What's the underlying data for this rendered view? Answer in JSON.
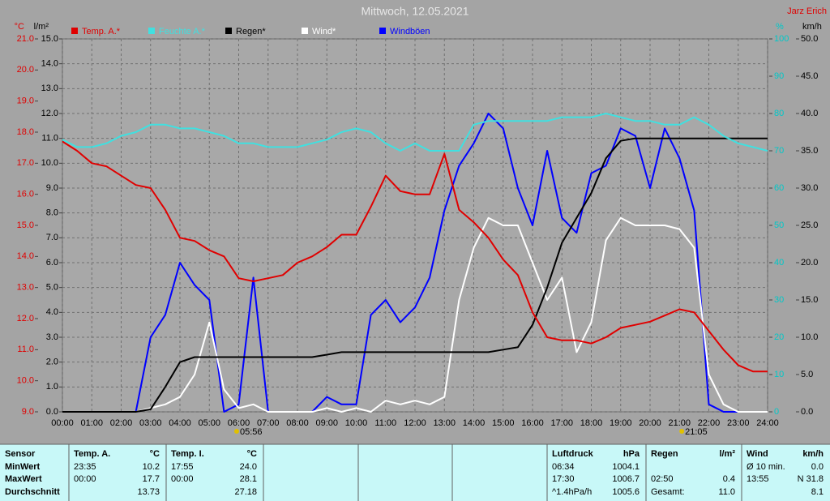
{
  "chart_data": {
    "type": "line",
    "title": "Mittwoch, 12.05.2021",
    "author": "Jarz Erich",
    "x": [
      0,
      0.5,
      1,
      1.5,
      2,
      2.5,
      3,
      3.5,
      4,
      4.5,
      5,
      5.5,
      6,
      6.5,
      7,
      7.5,
      8,
      8.5,
      9,
      9.5,
      10,
      10.5,
      11,
      11.5,
      12,
      12.5,
      13,
      13.5,
      14,
      14.5,
      15,
      15.5,
      16,
      16.5,
      17,
      17.5,
      18,
      18.5,
      19,
      19.5,
      20,
      20.5,
      21,
      21.5,
      22,
      22.5,
      23,
      23.5,
      24
    ],
    "xlim": [
      0,
      24
    ],
    "xticks": [
      {
        "value": 0,
        "label": "00:00"
      },
      {
        "value": 1,
        "label": "01:00"
      },
      {
        "value": 2,
        "label": "02:00"
      },
      {
        "value": 3,
        "label": "03:00"
      },
      {
        "value": 4,
        "label": "04:00"
      },
      {
        "value": 5,
        "label": "05:00"
      },
      {
        "value": 6,
        "label": "06:00"
      },
      {
        "value": 7,
        "label": "07:00"
      },
      {
        "value": 8,
        "label": "08:00"
      },
      {
        "value": 9,
        "label": "09:00"
      },
      {
        "value": 10,
        "label": "10:00"
      },
      {
        "value": 11,
        "label": "11:00"
      },
      {
        "value": 12,
        "label": "12:00"
      },
      {
        "value": 13,
        "label": "13:00"
      },
      {
        "value": 14,
        "label": "14:00"
      },
      {
        "value": 15,
        "label": "15:00"
      },
      {
        "value": 16,
        "label": "16:00"
      },
      {
        "value": 17,
        "label": "17:00"
      },
      {
        "value": 18,
        "label": "18:00"
      },
      {
        "value": 19,
        "label": "19:00"
      },
      {
        "value": 20,
        "label": "20:00"
      },
      {
        "value": 21,
        "label": "21:00"
      },
      {
        "value": 22,
        "label": "22:00"
      },
      {
        "value": 23,
        "label": "23:00"
      },
      {
        "value": 24,
        "label": "24:00"
      }
    ],
    "grid": true,
    "axes": [
      {
        "unit": "°C",
        "color": "#e00000",
        "lim": [
          9,
          21
        ],
        "ticks": [
          {
            "value": 9,
            "label": "9.0"
          },
          {
            "value": 10,
            "label": "10.0"
          },
          {
            "value": 11,
            "label": "11.0"
          },
          {
            "value": 12,
            "label": "12.0"
          },
          {
            "value": 13,
            "label": "13.0"
          },
          {
            "value": 14,
            "label": "14.0"
          },
          {
            "value": 15,
            "label": "15.0"
          },
          {
            "value": 16,
            "label": "16.0"
          },
          {
            "value": 17,
            "label": "17.0"
          },
          {
            "value": 18,
            "label": "18.0"
          },
          {
            "value": 19,
            "label": "19.0"
          },
          {
            "value": 20,
            "label": "20.0"
          },
          {
            "value": 21,
            "label": "21.0"
          }
        ]
      },
      {
        "unit": "l/m²",
        "color": "#000000",
        "lim": [
          0,
          15
        ],
        "ticks": [
          {
            "value": 0,
            "label": "0.0"
          },
          {
            "value": 1,
            "label": "1.0"
          },
          {
            "value": 2,
            "label": "2.0"
          },
          {
            "value": 3,
            "label": "3.0"
          },
          {
            "value": 4,
            "label": "4.0"
          },
          {
            "value": 5,
            "label": "5.0"
          },
          {
            "value": 6,
            "label": "6.0"
          },
          {
            "value": 7,
            "label": "7.0"
          },
          {
            "value": 8,
            "label": "8.0"
          },
          {
            "value": 9,
            "label": "9.0"
          },
          {
            "value": 10,
            "label": "10.0"
          },
          {
            "value": 11,
            "label": "11.0"
          },
          {
            "value": 12,
            "label": "12.0"
          },
          {
            "value": 13,
            "label": "13.0"
          },
          {
            "value": 14,
            "label": "14.0"
          },
          {
            "value": 15,
            "label": "15.0"
          }
        ]
      },
      {
        "unit": "%",
        "color": "#00c8c8",
        "lim": [
          0,
          100
        ],
        "ticks": [
          0,
          10,
          20,
          30,
          40,
          50,
          60,
          70,
          80,
          90,
          100
        ]
      },
      {
        "unit": "km/h",
        "color": "#000000",
        "lim": [
          0,
          50
        ],
        "ticks": [
          {
            "value": 0,
            "label": "0.0"
          },
          {
            "value": 5,
            "label": "5.0"
          },
          {
            "value": 10,
            "label": "10.0"
          },
          {
            "value": 15,
            "label": "15.0"
          },
          {
            "value": 20,
            "label": "20.0"
          },
          {
            "value": 25,
            "label": "25.0"
          },
          {
            "value": 30,
            "label": "30.0"
          },
          {
            "value": 35,
            "label": "35.0"
          },
          {
            "value": 40,
            "label": "40.0"
          },
          {
            "value": 45,
            "label": "45.0"
          },
          {
            "value": 50,
            "label": "50.0"
          }
        ]
      }
    ],
    "series": [
      {
        "name": "Temp. A.*",
        "color": "#e00000",
        "axis": 0,
        "values": [
          17.7,
          17.4,
          17.0,
          16.9,
          16.6,
          16.3,
          16.2,
          15.5,
          14.6,
          14.5,
          14.2,
          14.0,
          13.3,
          13.2,
          13.3,
          13.4,
          13.8,
          14.0,
          14.3,
          14.7,
          14.7,
          15.6,
          16.6,
          16.1,
          16.0,
          16.0,
          17.3,
          15.5,
          15.1,
          14.6,
          13.9,
          13.4,
          12.2,
          11.4,
          11.3,
          11.3,
          11.2,
          11.4,
          11.7,
          11.8,
          11.9,
          12.1,
          12.3,
          12.2,
          11.6,
          11.0,
          10.5,
          10.3,
          10.3
        ]
      },
      {
        "name": "Feuchte A.*",
        "color": "#40e0e0",
        "axis": 2,
        "values": [
          73,
          71,
          71,
          72,
          74,
          75,
          77,
          77,
          76,
          76,
          75,
          74,
          72,
          72,
          71,
          71,
          71,
          72,
          73,
          75,
          76,
          75,
          72,
          70,
          72,
          70,
          70,
          70,
          77,
          78,
          78,
          78,
          78,
          78,
          79,
          79,
          79,
          80,
          79,
          78,
          78,
          77,
          77,
          79,
          77,
          74,
          72,
          71,
          70
        ]
      },
      {
        "name": "Regen*",
        "color": "#000000",
        "axis": 1,
        "values": [
          0,
          0,
          0,
          0,
          0,
          0,
          0.1,
          1.0,
          2.0,
          2.2,
          2.2,
          2.2,
          2.2,
          2.2,
          2.2,
          2.2,
          2.2,
          2.2,
          2.3,
          2.4,
          2.4,
          2.4,
          2.4,
          2.4,
          2.4,
          2.4,
          2.4,
          2.4,
          2.4,
          2.4,
          2.5,
          2.6,
          3.5,
          5.0,
          6.8,
          7.8,
          8.8,
          10.2,
          10.9,
          11.0,
          11.0,
          11.0,
          11.0,
          11.0,
          11.0,
          11.0,
          11.0,
          11.0,
          11.0
        ]
      },
      {
        "name": "Wind*",
        "color": "#ffffff",
        "axis": 3,
        "values": [
          0,
          0,
          0,
          0,
          0,
          0,
          0.5,
          1,
          2,
          5,
          12,
          3,
          0.5,
          1,
          0,
          0,
          0,
          0,
          0.5,
          0,
          0.5,
          0,
          1.5,
          1,
          1.5,
          1,
          2,
          15,
          22,
          26,
          25,
          25,
          20,
          15,
          18,
          8,
          12,
          23,
          26,
          25,
          25,
          25,
          24.5,
          22,
          5,
          1,
          0,
          0,
          0
        ]
      },
      {
        "name": "Windböen",
        "color": "#0000ff",
        "axis": 3,
        "values": [
          0,
          0,
          0,
          0,
          0,
          0,
          10,
          13,
          20,
          17,
          15,
          0,
          1,
          18,
          0,
          0,
          0,
          0,
          2,
          1,
          1,
          13,
          15,
          12,
          14,
          18,
          27,
          33,
          36,
          40,
          38,
          30,
          25,
          35,
          26,
          24,
          32,
          33,
          38,
          37,
          30,
          38,
          34,
          27,
          1,
          0,
          0,
          0,
          0
        ]
      }
    ],
    "annotations": [
      {
        "x": 5.93,
        "label": "05:56"
      },
      {
        "x": 21.08,
        "label": "21:05"
      }
    ]
  },
  "stats": {
    "sections": [
      {
        "header": [
          "Sensor"
        ],
        "rows": [
          [
            "MinWert"
          ],
          [
            "MaxWert"
          ],
          [
            "Durchschnitt"
          ]
        ]
      },
      {
        "header": [
          "Temp. A.",
          "°C"
        ],
        "rows": [
          [
            "23:35",
            "10.2"
          ],
          [
            "00:00",
            "17.7"
          ],
          [
            null,
            "13.73"
          ]
        ]
      },
      {
        "header": [
          "Temp. I.",
          "°C"
        ],
        "rows": [
          [
            "17:55",
            "24.0"
          ],
          [
            "00:00",
            "28.1"
          ],
          [
            null,
            "27.18"
          ]
        ]
      },
      {
        "header": [
          "Luftdruck",
          "hPa"
        ],
        "rows": [
          [
            "06:34",
            "1004.1"
          ],
          [
            "17:30",
            "1006.7"
          ],
          [
            "^1.4hPa/h",
            "1005.6"
          ]
        ]
      },
      {
        "header": [
          "Regen",
          "l/m²"
        ],
        "rows": [
          [
            null,
            null
          ],
          [
            "02:50",
            "0.4"
          ],
          [
            "Gesamt:",
            "11.0"
          ]
        ]
      },
      {
        "header": [
          "Wind",
          "km/h"
        ],
        "rows": [
          [
            "Ø 10 min.",
            "0.0"
          ],
          [
            "13:55",
            "N 31.8"
          ],
          [
            null,
            "8.1"
          ]
        ]
      }
    ]
  }
}
